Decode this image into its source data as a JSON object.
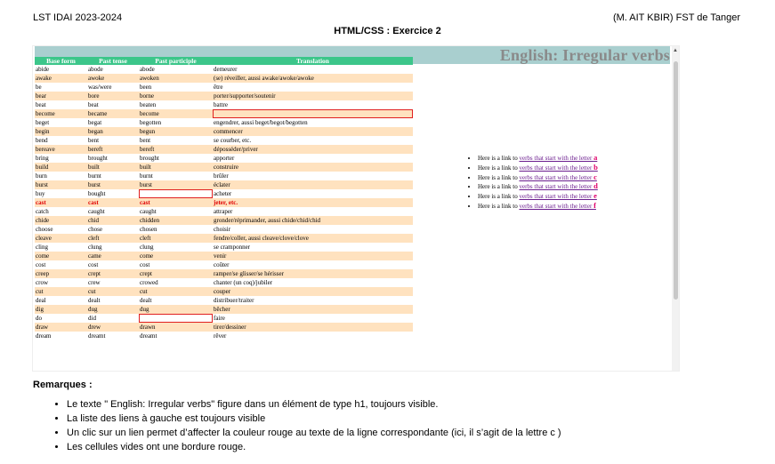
{
  "header": {
    "left": "LST IDAI 2023-2024",
    "right": "(M. AIT KBIR) FST de Tanger",
    "title": "HTML/CSS : Exercice 2"
  },
  "page": {
    "h1": "English: Irregular verbs"
  },
  "table": {
    "columns": [
      "Base form",
      "Past tense",
      "Past participle",
      "Translation"
    ],
    "rows": [
      [
        "abide",
        "abode",
        "abode",
        "demeurer"
      ],
      [
        "awake",
        "awoke",
        "awoken",
        "(se) réveiller, aussi awake/awoke/awoke"
      ],
      [
        "be",
        "was/were",
        "been",
        "être"
      ],
      [
        "bear",
        "bore",
        "borne",
        "porter/supporter/soutenir"
      ],
      [
        "beat",
        "beat",
        "beaten",
        "battre"
      ],
      [
        "become",
        "became",
        "become",
        ""
      ],
      [
        "beget",
        "begat",
        "begotten",
        "engendrer, aussi beget/begot/begotten"
      ],
      [
        "begin",
        "began",
        "begun",
        "commencer"
      ],
      [
        "bend",
        "bent",
        "bent",
        "se courber, etc."
      ],
      [
        "bereave",
        "bereft",
        "bereft",
        "déposséder/priver"
      ],
      [
        "bring",
        "brought",
        "brought",
        "apporter"
      ],
      [
        "build",
        "built",
        "built",
        "construire"
      ],
      [
        "burn",
        "burnt",
        "burnt",
        "brûler"
      ],
      [
        "burst",
        "burst",
        "burst",
        "éclater"
      ],
      [
        "buy",
        "bought",
        "",
        "acheter"
      ],
      [
        "cast",
        "cast",
        "cast",
        "jeter, etc."
      ],
      [
        "catch",
        "caught",
        "caught",
        "attraper"
      ],
      [
        "chide",
        "chid",
        "chidden",
        "gronder/réprimander, aussi chide/chid/chid"
      ],
      [
        "choose",
        "chose",
        "chosen",
        "choisir"
      ],
      [
        "cleave",
        "cleft",
        "cleft",
        "fendre/coller, aussi cleave/clove/clove"
      ],
      [
        "cling",
        "clung",
        "clung",
        "se cramponner"
      ],
      [
        "come",
        "came",
        "come",
        "venir"
      ],
      [
        "cost",
        "cost",
        "cost",
        "coûter"
      ],
      [
        "creep",
        "crept",
        "crept",
        "ramper/se glisser/se hérisser"
      ],
      [
        "crow",
        "crew",
        "crowed",
        "chanter (un coq)/jubiler"
      ],
      [
        "cut",
        "cut",
        "cut",
        "couper"
      ],
      [
        "deal",
        "dealt",
        "dealt",
        "distribuer/traiter"
      ],
      [
        "dig",
        "dug",
        "dug",
        "bêcher"
      ],
      [
        "do",
        "did",
        "",
        "faire"
      ],
      [
        "draw",
        "drew",
        "drawn",
        "tirer/dessiner"
      ],
      [
        "dream",
        "dreamt",
        "dreamt",
        "rêver"
      ]
    ],
    "highlighted_row": "cast"
  },
  "links": {
    "prefix": "Here is a link to ",
    "link_text": "verbs that start with the letter ",
    "letters": [
      "a",
      "b",
      "c",
      "d",
      "e",
      "f"
    ]
  },
  "remarks": {
    "title": "Remarques :",
    "items": [
      "Le texte \" English: Irregular verbs\" figure dans un élément de type h1, toujours visible.",
      "La liste des liens à gauche est toujours visible",
      "Un clic sur un lien permet d’affecter la couleur rouge au texte de la ligne correspondante (ici, il s’agit de la lettre c )",
      "Les cellules vides ont une bordure rouge."
    ]
  },
  "colors": {
    "header_green": "#3cc68a",
    "row_alt": "#ffe2bf",
    "h1_bar": "#a9cfcf",
    "highlight_red": "#e00000",
    "link_purple": "#6b1d8e",
    "letter_pink": "#e0006a"
  }
}
